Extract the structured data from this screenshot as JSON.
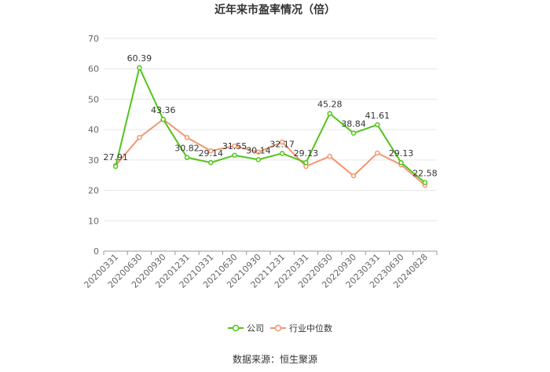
{
  "chart_data": {
    "type": "line",
    "title": "近年来市盈率情况（倍）",
    "categories": [
      "20200331",
      "20200630",
      "20200930",
      "20201231",
      "20210331",
      "20210630",
      "20210930",
      "20211231",
      "20220331",
      "20220630",
      "20220930",
      "20230331",
      "20230630",
      "20240828"
    ],
    "series": [
      {
        "name": "公司",
        "color": "#52c41a",
        "values": [
          27.91,
          60.39,
          43.36,
          30.82,
          29.14,
          31.55,
          30.14,
          32.17,
          29.13,
          45.28,
          38.84,
          41.61,
          29.13,
          22.58
        ],
        "labels": [
          "27.91",
          "60.39",
          "43.36",
          "30.82",
          "29.14",
          "31.55",
          "30.14",
          "32.17",
          "29.13",
          "45.28",
          "38.84",
          "41.61",
          "29.13",
          "22.58"
        ]
      },
      {
        "name": "行业中位数",
        "color": "#f4956e",
        "values": [
          28.2,
          37.4,
          43.4,
          37.4,
          33.0,
          34.6,
          32.6,
          35.9,
          27.9,
          31.2,
          24.8,
          32.3,
          28.4,
          21.7
        ]
      }
    ],
    "ylim": [
      0,
      70
    ],
    "yticks": [
      0,
      10,
      20,
      30,
      40,
      50,
      60,
      70
    ],
    "ylabel": "",
    "xlabel": "",
    "grid": true,
    "legend_position": "bottom-center"
  },
  "footer": {
    "source": "数据来源：恒生聚源"
  }
}
